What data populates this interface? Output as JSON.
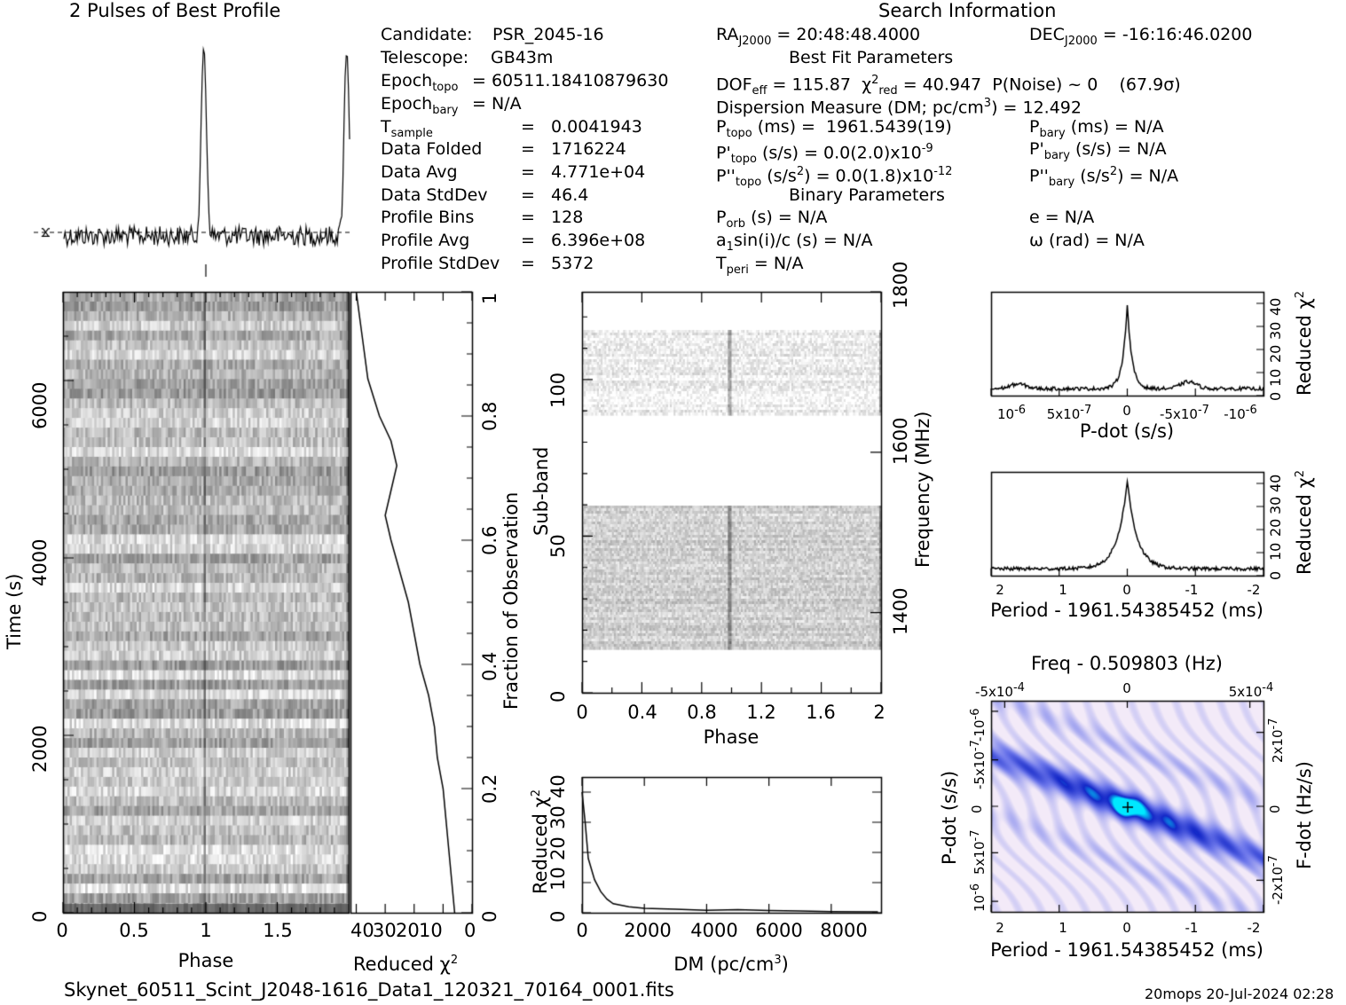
{
  "colors": {
    "ink": "#000000",
    "panel_bg": "#ffffff",
    "heat_low": "#f3eaf8",
    "heat_mid": "#2b3fe0",
    "heat_high": "#00e8ff"
  },
  "top_title": "2 Pulses of Best Profile",
  "search_title": "Search Information",
  "info_left": [
    {
      "k": "Candidate:",
      "v": "PSR_2045-16"
    },
    {
      "k": "Telescope:",
      "v": "GB43m"
    },
    {
      "k": "Epoch",
      "sub": "topo",
      "v": "= 60511.18410879630"
    },
    {
      "k": "Epoch",
      "sub": "bary",
      "v": "= N/A"
    },
    {
      "k": "T",
      "sub": "sample",
      "v": "=   0.0041943"
    },
    {
      "k": "Data Folded",
      "v": "=   1716224"
    },
    {
      "k": "Data Avg",
      "v": "=   4.771e+04"
    },
    {
      "k": "Data StdDev",
      "v": "=   46.4"
    },
    {
      "k": "Profile Bins",
      "v": "=   128"
    },
    {
      "k": "Profile Avg",
      "v": "=   6.396e+08"
    },
    {
      "k": "Profile StdDev",
      "v": "=   5372"
    }
  ],
  "info_mid": {
    "ra": "RA",
    "ra_sub": "J2000",
    "ra_val": "= 20:48:48.4000",
    "dec": "DEC",
    "dec_sub": "J2000",
    "dec_val": "= -16:16:46.0200",
    "best_fit": "Best Fit Parameters",
    "dof": "DOF",
    "dof_sub": "eff",
    "dof_val": "= 115.87",
    "chi": "χ",
    "chi_sub": "red",
    "chi_val": "= 40.947",
    "pnoise": "P(Noise) ~ 0    (67.9σ)",
    "dm": "Dispersion Measure (DM; pc/cm",
    "dm_tail": ") = 12.492",
    "ptopo": "P",
    "ptopo_sub": "topo",
    "ptopo_val": "(ms) =  1961.5439(19)",
    "pdtopo": "P'",
    "pdtopo_val": "(s/s) = 0.0(2.0)x10",
    "pdtopo_exp": "-9",
    "pddtopo": "P''",
    "pddtopo_val": "(s/s",
    "pddtopo_tail": ") = 0.0(1.8)x10",
    "pddtopo_exp": "-12",
    "binary": "Binary Parameters",
    "porb": "P",
    "porb_sub": "orb",
    "porb_val": "(s) = N/A",
    "a1": "a",
    "a1_val": "sin(i)/c (s) = N/A",
    "tperi": "T",
    "tperi_sub": "peri",
    "tperi_val": "= N/A"
  },
  "info_right": {
    "pbary": "P",
    "pbary_sub": "bary",
    "pbary_val": "(ms) = N/A",
    "pdbary": "P'",
    "pdbary_val": "(s/s) = N/A",
    "pddbary": "P''",
    "pddbary_val": "(s/s",
    "pddbary_tail": ") = N/A",
    "e": "e = N/A",
    "omega": "ω (rad) = N/A"
  },
  "footer_file": "Skynet_60511_Scint_J2048-1616_Data1_120321_70164_0001.fits",
  "footer_stamp": "20mops 20-Jul-2024 02:28",
  "chart_data": [
    {
      "type": "line",
      "name": "profile",
      "title": "2 Pulses of Best Profile",
      "x_range": [
        0,
        2
      ],
      "peaks": [
        {
          "phase": 0.98,
          "height": 1.0
        },
        {
          "phase": 1.98,
          "height": 1.0
        }
      ]
    },
    {
      "type": "heatmap",
      "name": "time-vs-phase",
      "xlabel": "Phase",
      "ylabel": "Time (s)",
      "xlim": [
        0,
        2
      ],
      "ylim": [
        0,
        7000
      ],
      "xticks": [
        "0",
        "0.5",
        "1",
        "1.5"
      ],
      "yticks": [
        "0",
        "2000",
        "4000",
        "6000"
      ]
    },
    {
      "type": "line",
      "name": "reduced-chi2-vs-fraction",
      "xlabel": "Reduced χ",
      "ylabel": "Fraction of Observation",
      "xticks": [
        "40",
        "30",
        "20",
        "10",
        "0"
      ],
      "yticks": [
        "0",
        "0.2",
        "0.4",
        "0.6",
        "0.8",
        "1"
      ],
      "x": [
        6,
        7,
        8,
        9,
        10,
        12,
        13,
        15,
        18,
        20,
        22,
        25,
        28,
        30,
        28,
        26,
        28,
        32,
        36,
        38,
        40
      ],
      "y": [
        0.0,
        0.05,
        0.1,
        0.15,
        0.2,
        0.25,
        0.3,
        0.35,
        0.4,
        0.45,
        0.5,
        0.55,
        0.6,
        0.64,
        0.68,
        0.72,
        0.76,
        0.8,
        0.86,
        0.93,
        1.0
      ]
    },
    {
      "type": "heatmap",
      "name": "subband-vs-phase",
      "xlabel": "Phase",
      "ylabel": "Sub-band",
      "y2label": "Frequency (MHz)",
      "xticks": [
        "0",
        "0.4",
        "0.8",
        "1.2",
        "1.6",
        "2"
      ],
      "yticks": [
        "0",
        "50",
        "100"
      ],
      "y2ticks": [
        "1400",
        "1600",
        "1800"
      ]
    },
    {
      "type": "line",
      "name": "reduced-chi2-vs-dm",
      "xlabel": "DM (pc/cm",
      "ylabel": "Reduced χ",
      "xticks": [
        "0",
        "2000",
        "4000",
        "6000",
        "8000"
      ],
      "yticks": [
        "0",
        "10",
        "20",
        "30",
        "40"
      ],
      "x": [
        0,
        100,
        200,
        400,
        600,
        800,
        1000,
        1500,
        2000,
        3000,
        4000,
        5000,
        6000,
        7000,
        8000,
        9500
      ],
      "y": [
        40,
        30,
        18,
        11,
        7,
        4.5,
        3,
        2,
        1.5,
        1.2,
        0.8,
        1.0,
        0.7,
        0.6,
        0.4,
        0.3
      ]
    },
    {
      "type": "line",
      "name": "chi2-vs-pdot",
      "xlabel": "P-dot (s/s)",
      "ylabel": "Reduced χ",
      "xticks": [
        "10",
        "5x10",
        "0",
        "-5x10",
        "-10"
      ],
      "xtick_exps": [
        "-6",
        "-7",
        "",
        "-7",
        "-6"
      ],
      "yticks": [
        "0",
        "10",
        "20",
        "30",
        "40"
      ],
      "peak_value": 40
    },
    {
      "type": "line",
      "name": "chi2-vs-period",
      "xlabel": "Period - 1961.54385452 (ms)",
      "ylabel": "Reduced χ",
      "xticks": [
        "2",
        "1",
        "0",
        "-1",
        "-2"
      ],
      "yticks": [
        "0",
        "10",
        "20",
        "30",
        "40"
      ],
      "peak_value": 40
    },
    {
      "type": "heatmap",
      "name": "pdot-vs-period",
      "title": "Freq - 0.509803 (Hz)",
      "xlabel": "Period - 1961.54385452 (ms)",
      "ylabel": "P-dot (s/s)",
      "y2label": "F-dot (Hz/s)",
      "xticks": [
        "2",
        "1",
        "0",
        "-1",
        "-2"
      ],
      "top_ticks": [
        "-5x10",
        "0",
        "5x10"
      ],
      "top_tick_exps": [
        "-4",
        "",
        "-4"
      ],
      "yticks": [
        "10",
        "5x10",
        "0",
        "-5x10",
        "-10"
      ],
      "ytick_exps": [
        "-6",
        "-7",
        "",
        "-7",
        "-6"
      ],
      "y2ticks": [
        "-2x10",
        "0",
        "2x10"
      ],
      "y2tick_exps": [
        "-7",
        "",
        "-7"
      ]
    }
  ]
}
